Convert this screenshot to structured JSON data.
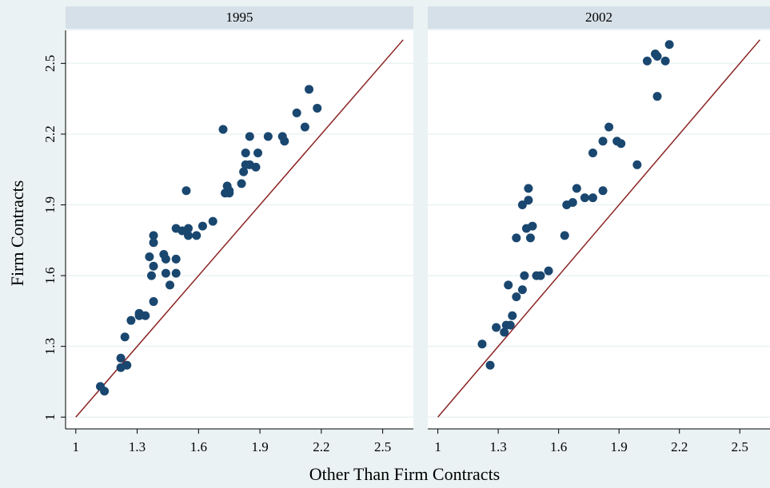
{
  "x_label": "Other Than Firm Contracts",
  "y_label": "Firm Contracts",
  "chart_data": [
    {
      "type": "scatter",
      "title": "1995",
      "color": "#1a476f",
      "x": [
        1.12,
        1.14,
        1.22,
        1.22,
        1.25,
        1.24,
        1.27,
        1.31,
        1.31,
        1.34,
        1.38,
        1.36,
        1.37,
        1.38,
        1.38,
        1.38,
        1.43,
        1.44,
        1.44,
        1.46,
        1.49,
        1.49,
        1.49,
        1.52,
        1.54,
        1.55,
        1.55,
        1.59,
        1.62,
        1.67,
        1.72,
        1.73,
        1.75,
        1.74,
        1.75,
        1.81,
        1.82,
        1.83,
        1.83,
        1.85,
        1.85,
        1.88,
        1.89,
        1.94,
        2.01,
        2.02,
        2.08,
        2.12,
        2.14,
        2.18
      ],
      "values": [
        1.13,
        1.11,
        1.25,
        1.21,
        1.22,
        1.34,
        1.41,
        1.44,
        1.43,
        1.43,
        1.49,
        1.68,
        1.6,
        1.64,
        1.74,
        1.77,
        1.69,
        1.67,
        1.61,
        1.56,
        1.61,
        1.67,
        1.8,
        1.79,
        1.96,
        1.8,
        1.77,
        1.77,
        1.81,
        1.83,
        2.22,
        1.95,
        1.96,
        1.98,
        1.95,
        1.99,
        2.04,
        2.12,
        2.07,
        2.19,
        2.07,
        2.06,
        2.12,
        2.19,
        2.19,
        2.17,
        2.29,
        2.23,
        2.39,
        2.31
      ],
      "reference_line": {
        "x": [
          1,
          2.6
        ],
        "values": [
          1,
          2.6
        ],
        "color": "#8b2323"
      },
      "xlim": [
        0.95,
        2.65
      ],
      "ylim": [
        0.95,
        2.64
      ],
      "xticks": [
        1,
        1.3,
        1.6,
        1.9,
        2.2,
        2.5
      ],
      "yticks": [
        1,
        1.3,
        1.6,
        1.9,
        2.2,
        2.5
      ],
      "grid": true
    },
    {
      "type": "scatter",
      "title": "2002",
      "color": "#1a476f",
      "x": [
        1.22,
        1.26,
        1.29,
        1.33,
        1.34,
        1.36,
        1.35,
        1.37,
        1.39,
        1.39,
        1.42,
        1.42,
        1.43,
        1.44,
        1.45,
        1.45,
        1.46,
        1.47,
        1.49,
        1.51,
        1.55,
        1.63,
        1.64,
        1.67,
        1.69,
        1.73,
        1.77,
        1.77,
        1.82,
        1.82,
        1.85,
        1.89,
        1.91,
        1.99,
        2.04,
        2.08,
        2.09,
        2.09,
        2.13,
        2.15
      ],
      "values": [
        1.31,
        1.22,
        1.38,
        1.36,
        1.39,
        1.39,
        1.56,
        1.43,
        1.51,
        1.76,
        1.54,
        1.9,
        1.6,
        1.8,
        1.97,
        1.92,
        1.76,
        1.81,
        1.6,
        1.6,
        1.62,
        1.77,
        1.9,
        1.91,
        1.97,
        1.93,
        2.12,
        1.93,
        2.17,
        1.96,
        2.23,
        2.17,
        2.16,
        2.07,
        2.51,
        2.54,
        2.53,
        2.36,
        2.51,
        2.58
      ],
      "reference_line": {
        "x": [
          1,
          2.6
        ],
        "values": [
          1,
          2.6
        ],
        "color": "#8b2323"
      },
      "xlim": [
        0.95,
        2.65
      ],
      "ylim": [
        0.95,
        2.64
      ],
      "xticks": [
        1,
        1.3,
        1.6,
        1.9,
        2.2,
        2.5
      ],
      "yticks": [
        1,
        1.3,
        1.6,
        1.9,
        2.2,
        2.5
      ],
      "grid": true
    }
  ]
}
